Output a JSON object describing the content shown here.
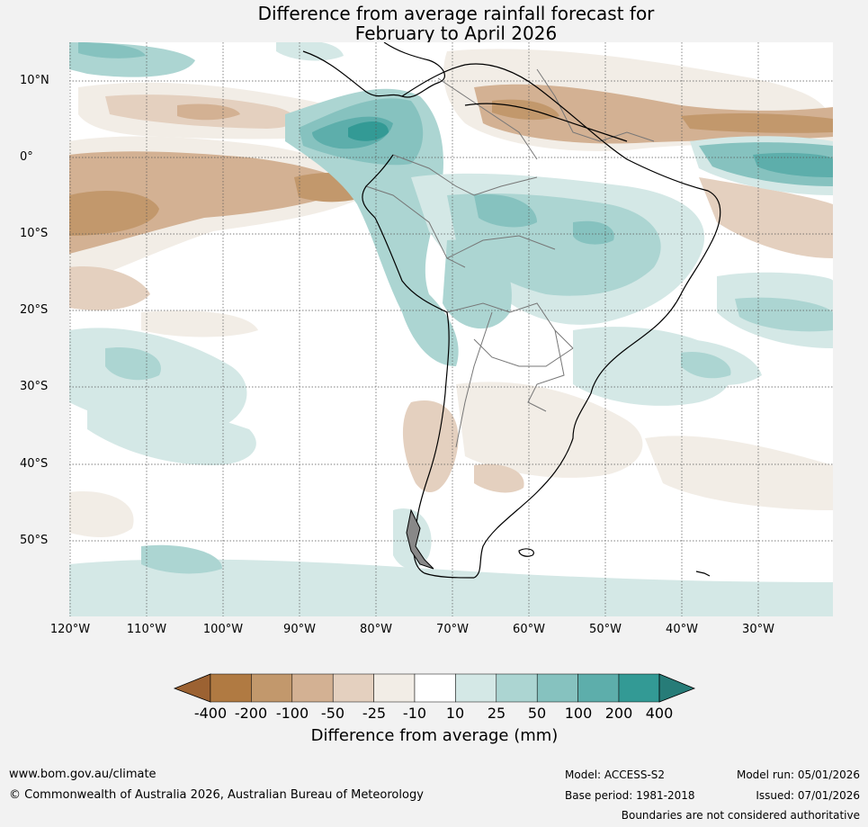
{
  "title": {
    "line1": "Difference from average rainfall forecast for",
    "line2": "February to April 2026"
  },
  "map": {
    "lat_labels": [
      "10°N",
      "0°",
      "10°S",
      "20°S",
      "30°S",
      "40°S",
      "50°S"
    ],
    "lon_labels": [
      "120°W",
      "110°W",
      "100°W",
      "90°W",
      "80°W",
      "70°W",
      "60°W",
      "50°W",
      "40°W",
      "30°W"
    ]
  },
  "legend": {
    "title": "Difference from average (mm)",
    "ticks": [
      "-400",
      "-200",
      "-100",
      "-50",
      "-25",
      "-10",
      "10",
      "25",
      "50",
      "100",
      "200",
      "400"
    ],
    "colors": {
      "below_lowest": "#9c6232",
      "bins": [
        "#b07a42",
        "#c2986c",
        "#d3b193",
        "#e4d0bf",
        "#f2ede6",
        "#ffffff",
        "#d4e8e6",
        "#acd5d2",
        "#86c2bf",
        "#5daeab",
        "#339a95"
      ],
      "above_highest": "#277c78"
    }
  },
  "footer": {
    "website": "www.bom.gov.au/climate",
    "copyright": "© Commonwealth of Australia 2026, Australian Bureau of Meteorology",
    "model": "Model: ACCESS-S2",
    "base_period": "Base period: 1981-2018",
    "model_run": "Model run: 05/01/2026",
    "issued": "Issued: 07/01/2026",
    "disclaimer": "Boundaries are not considered authoritative"
  }
}
